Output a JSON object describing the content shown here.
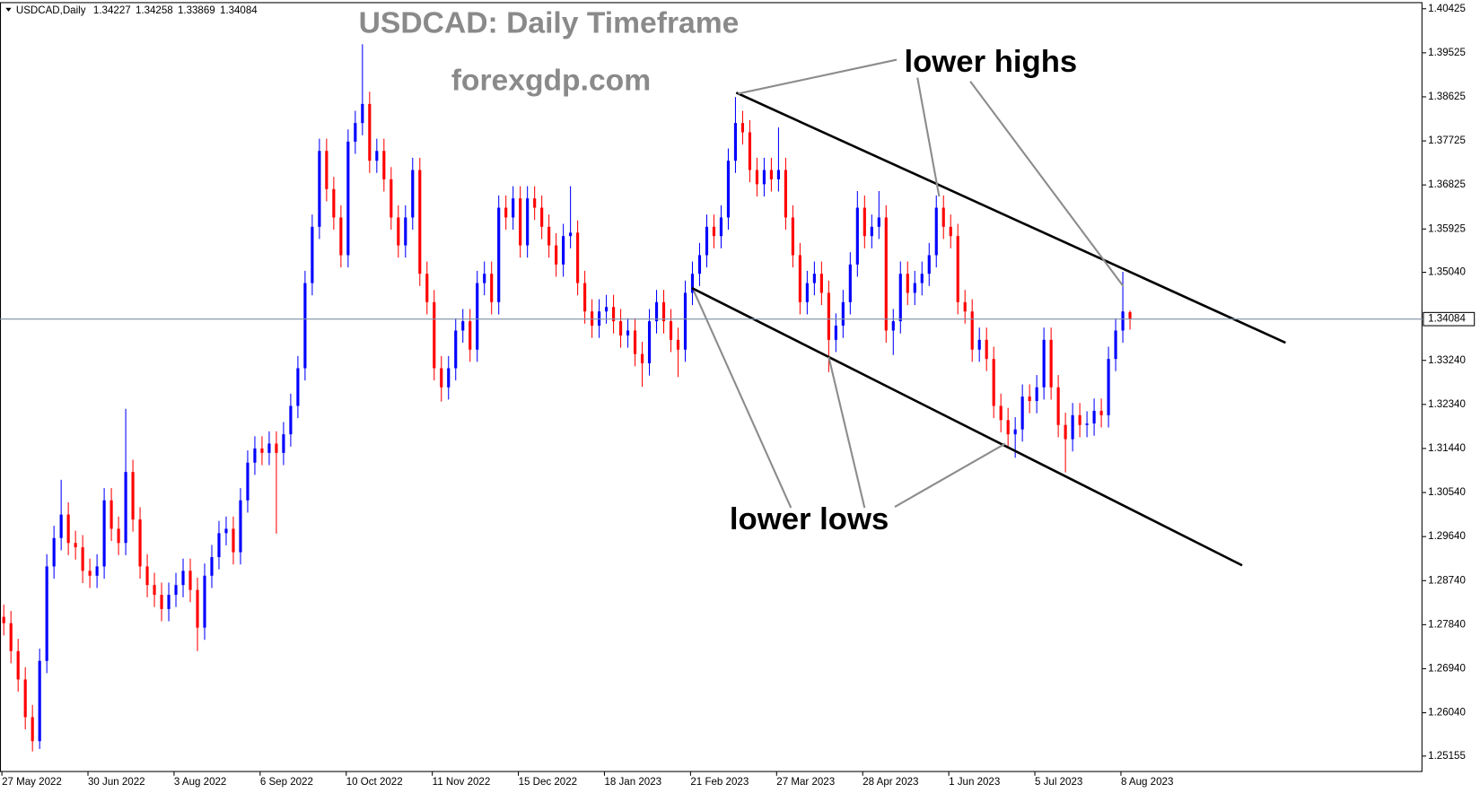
{
  "chart_data": {
    "type": "candlestick",
    "symbol": "USDCAD,Daily",
    "title": "USDCAD: Daily Timeframe",
    "subtitle": "forexgdp.com",
    "annotations": [
      "lower highs",
      "lower lows"
    ],
    "up_color": "#0000ff",
    "down_color": "#ff0000",
    "ylim": [
      1.2483,
      1.4056
    ],
    "yticks": [
      1.40425,
      1.39525,
      1.38625,
      1.37725,
      1.36825,
      1.35925,
      {
        "value": 1.3504,
        "label": "1.35040"
      },
      {
        "value": 1.3324,
        "label": "1.33240"
      },
      {
        "value": 1.3234,
        "label": "1.32340"
      },
      {
        "value": 1.3144,
        "label": "1.31440"
      },
      {
        "value": 1.3054,
        "label": "1.30540"
      },
      {
        "value": 1.2964,
        "label": "1.29640"
      },
      {
        "value": 1.2874,
        "label": "1.28740"
      },
      {
        "value": 1.2784,
        "label": "1.27840"
      },
      {
        "value": 1.2694,
        "label": "1.26940"
      },
      {
        "value": 1.2604,
        "label": "1.26040"
      },
      1.25155
    ],
    "categories": [
      "27 May 2022",
      null,
      null,
      null,
      null,
      null,
      null,
      null,
      null,
      null,
      null,
      null,
      "30 Jun 2022",
      null,
      null,
      null,
      null,
      null,
      null,
      null,
      null,
      null,
      null,
      null,
      "3 Aug 2022",
      null,
      null,
      null,
      null,
      null,
      null,
      null,
      null,
      null,
      null,
      null,
      "6 Sep 2022",
      null,
      null,
      null,
      null,
      null,
      null,
      null,
      null,
      null,
      null,
      null,
      "10 Oct 2022",
      null,
      null,
      null,
      null,
      null,
      null,
      null,
      null,
      null,
      null,
      null,
      "11 Nov 2022",
      null,
      null,
      null,
      null,
      null,
      null,
      null,
      null,
      null,
      null,
      null,
      "15 Dec 2022",
      null,
      null,
      null,
      null,
      null,
      null,
      null,
      null,
      null,
      null,
      null,
      "18 Jan 2023",
      null,
      null,
      null,
      null,
      null,
      null,
      null,
      null,
      null,
      null,
      null,
      "21 Feb 2023",
      null,
      null,
      null,
      null,
      null,
      null,
      null,
      null,
      null,
      null,
      null,
      "27 Mar 2023",
      null,
      null,
      null,
      null,
      null,
      null,
      null,
      null,
      null,
      null,
      null,
      "28 Apr 2023",
      null,
      null,
      null,
      null,
      null,
      null,
      null,
      null,
      null,
      null,
      null,
      "1 Jun 2023",
      null,
      null,
      null,
      null,
      null,
      null,
      null,
      null,
      null,
      null,
      null,
      "5 Jul 2023",
      null,
      null,
      null,
      null,
      null,
      null,
      null,
      null,
      null,
      null,
      null,
      "8 Aug 2023",
      null
    ],
    "open": [
      1.28,
      1.2787,
      1.273,
      1.2672,
      1.2595,
      1.2546,
      1.271,
      1.2903,
      1.2961,
      1.3009,
      1.2951,
      1.2942,
      1.2894,
      1.2884,
      1.2903,
      1.3038,
      1.298,
      1.2951,
      1.3096,
      1.2999,
      1.2903,
      1.2865,
      1.2845,
      1.2816,
      1.2845,
      1.2865,
      1.2894,
      1.2855,
      1.2778,
      1.2884,
      1.2922,
      1.2971,
      1.298,
      1.2932,
      1.3038,
      1.3115,
      1.3144,
      1.3135,
      1.3154,
      1.3135,
      1.3173,
      1.3231,
      1.3308,
      1.3482,
      1.3597,
      1.3752,
      1.3674,
      1.3616,
      1.3539,
      1.3771,
      1.3809,
      1.3848,
      1.3732,
      1.3752,
      1.3694,
      1.3616,
      1.3559,
      1.3616,
      1.3713,
      1.3501,
      1.3443,
      1.3308,
      1.3269,
      1.3308,
      1.3385,
      1.3404,
      1.3346,
      1.3482,
      1.3501,
      1.3443,
      1.3636,
      1.3616,
      1.3655,
      1.3559,
      1.3655,
      1.3636,
      1.3597,
      1.3559,
      1.352,
      1.3578,
      1.3585,
      1.3482,
      1.3424,
      1.3395,
      1.3424,
      1.3433,
      1.3404,
      1.3375,
      1.3385,
      1.3337,
      1.3318,
      1.3404,
      1.3443,
      1.3404,
      1.3366,
      1.3346,
      1.3462,
      1.3501,
      1.3539,
      1.3597,
      1.3578,
      1.3616,
      1.3732,
      1.3809,
      1.379,
      1.3713,
      1.3684,
      1.3713,
      1.3694,
      1.3713,
      1.3616,
      1.3539,
      1.3443,
      1.3482,
      1.3501,
      1.3462,
      1.3366,
      1.3395,
      1.3443,
      1.352,
      1.3636,
      1.3578,
      1.3597,
      1.3616,
      1.3385,
      1.3404,
      1.3501,
      1.3462,
      1.3482,
      1.3501,
      1.3539,
      1.3636,
      1.3597,
      1.3578,
      1.3443,
      1.3424,
      1.3346,
      1.3366,
      1.3327,
      1.3231,
      1.3202,
      1.3173,
      1.3183,
      1.325,
      1.3241,
      1.3269,
      1.3366,
      1.3269,
      1.3192,
      1.3163,
      1.3212,
      1.3192,
      1.3195,
      1.3221,
      1.3212,
      1.3327,
      1.3385,
      1.34227
    ],
    "high": [
      1.2825,
      1.2812,
      1.2755,
      1.2697,
      1.262,
      1.2735,
      1.2928,
      1.2986,
      1.308,
      1.3034,
      1.2976,
      1.2967,
      1.2919,
      1.2928,
      1.3063,
      1.3063,
      1.3005,
      1.3225,
      1.3121,
      1.3024,
      1.2928,
      1.289,
      1.287,
      1.287,
      1.289,
      1.2919,
      1.2919,
      1.288,
      1.2909,
      1.2947,
      1.2996,
      1.3005,
      1.3005,
      1.3063,
      1.314,
      1.3169,
      1.3169,
      1.3179,
      1.3179,
      1.3198,
      1.3256,
      1.3333,
      1.3507,
      1.3622,
      1.3777,
      1.3777,
      1.3699,
      1.3641,
      1.3796,
      1.3834,
      1.397,
      1.3873,
      1.3777,
      1.3777,
      1.3719,
      1.3641,
      1.3641,
      1.3738,
      1.3738,
      1.3526,
      1.3468,
      1.3333,
      1.3333,
      1.341,
      1.3429,
      1.3429,
      1.3507,
      1.3526,
      1.3526,
      1.3661,
      1.3661,
      1.368,
      1.368,
      1.368,
      1.368,
      1.3661,
      1.3622,
      1.3584,
      1.3603,
      1.368,
      1.361,
      1.3507,
      1.3449,
      1.3449,
      1.3458,
      1.3458,
      1.3429,
      1.341,
      1.341,
      1.3362,
      1.3429,
      1.3468,
      1.3468,
      1.3429,
      1.3391,
      1.3487,
      1.3526,
      1.3564,
      1.3622,
      1.3622,
      1.3641,
      1.3757,
      1.3862,
      1.3834,
      1.3815,
      1.3738,
      1.3738,
      1.3738,
      1.38,
      1.3738,
      1.3641,
      1.3564,
      1.3507,
      1.3526,
      1.3526,
      1.3487,
      1.342,
      1.3468,
      1.3545,
      1.367,
      1.3661,
      1.3622,
      1.367,
      1.3641,
      1.3429,
      1.3526,
      1.3526,
      1.3507,
      1.3526,
      1.3564,
      1.3661,
      1.3661,
      1.3622,
      1.3603,
      1.3468,
      1.3449,
      1.3391,
      1.3391,
      1.3352,
      1.3256,
      1.3227,
      1.3208,
      1.3275,
      1.3275,
      1.3294,
      1.3391,
      1.3391,
      1.3294,
      1.3217,
      1.3237,
      1.3237,
      1.322,
      1.3246,
      1.3246,
      1.3352,
      1.341,
      1.3505,
      1.34258
    ],
    "low": [
      1.2762,
      1.2705,
      1.2647,
      1.257,
      1.2525,
      1.253,
      1.2685,
      1.2878,
      1.2936,
      1.2926,
      1.2917,
      1.2869,
      1.2859,
      1.2859,
      1.2878,
      1.2955,
      1.2926,
      1.2926,
      1.2974,
      1.2878,
      1.284,
      1.282,
      1.2791,
      1.2791,
      1.282,
      1.284,
      1.283,
      1.273,
      1.2753,
      1.2859,
      1.2897,
      1.2946,
      1.2907,
      1.2907,
      1.3013,
      1.309,
      1.311,
      1.311,
      1.297,
      1.311,
      1.3148,
      1.3206,
      1.3283,
      1.3457,
      1.3572,
      1.3649,
      1.3591,
      1.3514,
      1.3514,
      1.3746,
      1.3784,
      1.3707,
      1.3707,
      1.3669,
      1.3591,
      1.3534,
      1.3534,
      1.3591,
      1.3476,
      1.3418,
      1.3283,
      1.324,
      1.3244,
      1.3283,
      1.336,
      1.3321,
      1.3321,
      1.3457,
      1.3418,
      1.3418,
      1.3591,
      1.3591,
      1.3534,
      1.3534,
      1.3611,
      1.3572,
      1.3534,
      1.3495,
      1.3495,
      1.3553,
      1.3457,
      1.3399,
      1.337,
      1.337,
      1.3399,
      1.3379,
      1.335,
      1.335,
      1.3312,
      1.327,
      1.3293,
      1.3379,
      1.3379,
      1.3341,
      1.329,
      1.3321,
      1.3437,
      1.3476,
      1.3514,
      1.3553,
      1.3553,
      1.3591,
      1.3707,
      1.3765,
      1.3688,
      1.3659,
      1.3659,
      1.3669,
      1.3669,
      1.3591,
      1.3514,
      1.3418,
      1.3418,
      1.3457,
      1.3437,
      1.33,
      1.3341,
      1.337,
      1.3418,
      1.3495,
      1.3553,
      1.3553,
      1.3572,
      1.336,
      1.3335,
      1.3379,
      1.3437,
      1.3437,
      1.3457,
      1.3476,
      1.3514,
      1.3572,
      1.3553,
      1.3418,
      1.3399,
      1.3321,
      1.3321,
      1.3302,
      1.3206,
      1.3177,
      1.3148,
      1.3125,
      1.3158,
      1.3216,
      1.3216,
      1.3244,
      1.3244,
      1.3167,
      1.3095,
      1.3138,
      1.3167,
      1.3167,
      1.317,
      1.3187,
      1.3187,
      1.3302,
      1.336,
      1.33869
    ],
    "close": [
      1.2787,
      1.273,
      1.2672,
      1.2595,
      1.2546,
      1.271,
      1.2903,
      1.2961,
      1.3009,
      1.2951,
      1.2942,
      1.2894,
      1.2884,
      1.2903,
      1.3038,
      1.298,
      1.2951,
      1.3096,
      1.2999,
      1.2903,
      1.2865,
      1.2845,
      1.2816,
      1.2845,
      1.2865,
      1.2894,
      1.2855,
      1.2778,
      1.2884,
      1.2922,
      1.2971,
      1.298,
      1.2932,
      1.3038,
      1.3115,
      1.3144,
      1.3135,
      1.3154,
      1.3135,
      1.3173,
      1.3231,
      1.3308,
      1.3482,
      1.3597,
      1.3752,
      1.3674,
      1.3616,
      1.3539,
      1.3771,
      1.3809,
      1.3848,
      1.3732,
      1.3752,
      1.3694,
      1.3616,
      1.3559,
      1.3616,
      1.3713,
      1.3501,
      1.3443,
      1.3308,
      1.3269,
      1.3308,
      1.3385,
      1.3404,
      1.3346,
      1.3482,
      1.3501,
      1.3443,
      1.3636,
      1.3616,
      1.3655,
      1.3559,
      1.3655,
      1.3636,
      1.3597,
      1.3559,
      1.352,
      1.3578,
      1.3585,
      1.3482,
      1.3424,
      1.3395,
      1.3424,
      1.3433,
      1.3404,
      1.3375,
      1.3385,
      1.3337,
      1.3318,
      1.3404,
      1.3443,
      1.3404,
      1.3366,
      1.3346,
      1.3462,
      1.3501,
      1.3539,
      1.3597,
      1.3578,
      1.3616,
      1.3732,
      1.3809,
      1.379,
      1.3713,
      1.3684,
      1.3713,
      1.3694,
      1.3713,
      1.3616,
      1.3539,
      1.3443,
      1.3482,
      1.3501,
      1.3462,
      1.3366,
      1.3395,
      1.3443,
      1.352,
      1.3636,
      1.3578,
      1.3597,
      1.3616,
      1.3385,
      1.3404,
      1.3501,
      1.3462,
      1.3482,
      1.3501,
      1.3539,
      1.3636,
      1.3597,
      1.3578,
      1.3443,
      1.3424,
      1.3346,
      1.3366,
      1.3327,
      1.3231,
      1.3202,
      1.3173,
      1.3183,
      1.325,
      1.3241,
      1.3269,
      1.3366,
      1.3269,
      1.3192,
      1.3163,
      1.3212,
      1.3192,
      1.3195,
      1.3221,
      1.3212,
      1.3327,
      1.3385,
      1.3424,
      1.34084
    ]
  }
}
